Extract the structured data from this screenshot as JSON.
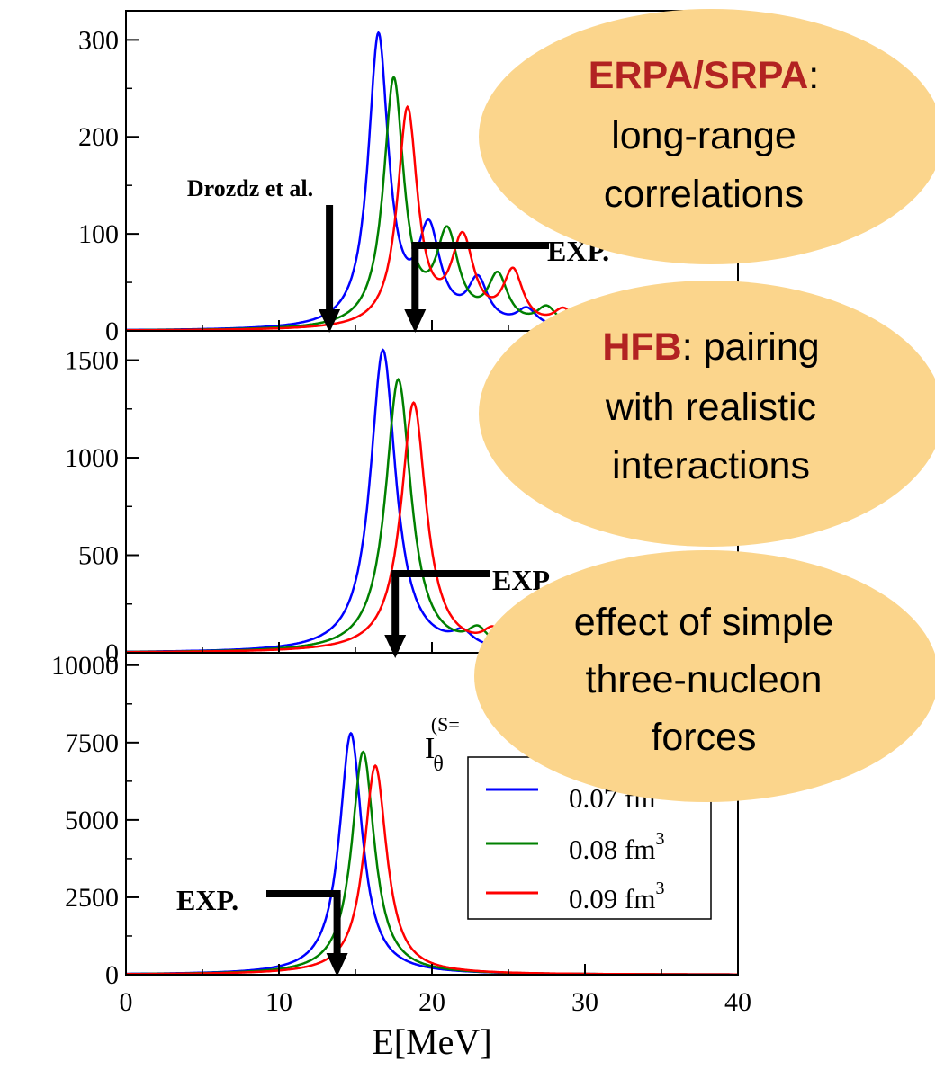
{
  "chart_data": {
    "type": "line",
    "xlabel": "E[MeV]",
    "xlim": [
      0,
      40
    ],
    "x_ticks": [
      "0",
      "10",
      "20",
      "30",
      "40"
    ],
    "panels": [
      {
        "name": "top",
        "ylim": [
          0,
          330
        ],
        "y_ticks": [
          {
            "value": 0,
            "label": "0"
          },
          {
            "value": 100,
            "label": "100"
          },
          {
            "value": 200,
            "label": "200"
          },
          {
            "value": 300,
            "label": "300"
          }
        ],
        "series": [
          {
            "color": "#0000ff",
            "peaks": [
              {
                "x": 16.5,
                "y": 300,
                "w": 0.8
              },
              {
                "x": 19.8,
                "y": 95,
                "w": 0.9
              },
              {
                "x": 23.0,
                "y": 45,
                "w": 0.8
              },
              {
                "x": 26.2,
                "y": 18,
                "w": 0.8
              }
            ]
          },
          {
            "color": "#008000",
            "peaks": [
              {
                "x": 17.5,
                "y": 255,
                "w": 0.8
              },
              {
                "x": 21.0,
                "y": 92,
                "w": 0.9
              },
              {
                "x": 24.3,
                "y": 50,
                "w": 0.8
              },
              {
                "x": 27.5,
                "y": 20,
                "w": 0.8
              }
            ]
          },
          {
            "color": "#ff0000",
            "peaks": [
              {
                "x": 18.4,
                "y": 225,
                "w": 0.8
              },
              {
                "x": 22.0,
                "y": 88,
                "w": 0.9
              },
              {
                "x": 25.3,
                "y": 55,
                "w": 0.8
              },
              {
                "x": 28.6,
                "y": 18,
                "w": 0.8
              }
            ]
          }
        ],
        "annotations": [
          {
            "text": "Drozdz et al.",
            "x": 13.3
          },
          {
            "text": "EXP.",
            "x": 18.9
          }
        ]
      },
      {
        "name": "middle",
        "ylim": [
          0,
          1650
        ],
        "y_ticks": [
          {
            "value": 0,
            "label": "0"
          },
          {
            "value": 500,
            "label": "500"
          },
          {
            "value": 1000,
            "label": "1000"
          },
          {
            "value": 1500,
            "label": "1500"
          }
        ],
        "series": [
          {
            "color": "#0000ff",
            "peaks": [
              {
                "x": 16.8,
                "y": 1550,
                "w": 1.0
              },
              {
                "x": 22.0,
                "y": 70,
                "w": 0.8
              }
            ]
          },
          {
            "color": "#008000",
            "peaks": [
              {
                "x": 17.8,
                "y": 1400,
                "w": 1.0
              },
              {
                "x": 23.0,
                "y": 90,
                "w": 0.8
              }
            ]
          },
          {
            "color": "#ff0000",
            "peaks": [
              {
                "x": 18.8,
                "y": 1280,
                "w": 1.0
              },
              {
                "x": 24.0,
                "y": 90,
                "w": 0.8
              }
            ]
          }
        ],
        "annotations": [
          {
            "text": "EXP.",
            "x": 17.6
          }
        ]
      },
      {
        "name": "bottom",
        "ylim": [
          0,
          10400
        ],
        "y_ticks": [
          {
            "value": 0,
            "label": "0"
          },
          {
            "value": 2500,
            "label": "2500"
          },
          {
            "value": 5000,
            "label": "5000"
          },
          {
            "value": 7500,
            "label": "7500"
          },
          {
            "value": 10000,
            "label": "10000"
          }
        ],
        "series": [
          {
            "color": "#0000ff",
            "peaks": [
              {
                "x": 14.7,
                "y": 7800,
                "w": 0.9
              }
            ]
          },
          {
            "color": "#008000",
            "peaks": [
              {
                "x": 15.5,
                "y": 7200,
                "w": 0.9
              }
            ]
          },
          {
            "color": "#ff0000",
            "peaks": [
              {
                "x": 16.3,
                "y": 6750,
                "w": 0.9
              }
            ]
          }
        ],
        "annotations": [
          {
            "text": "EXP.",
            "x": 13.8
          }
        ],
        "partial_label": {
          "main": "I",
          "sub": "θ",
          "sup": "(S="
        }
      }
    ],
    "legend": {
      "placement": "bottom-right",
      "entries": [
        {
          "color": "#0000ff",
          "label": "0.07 fm",
          "sup": "3"
        },
        {
          "color": "#008000",
          "label": "0.08 fm",
          "sup": "3"
        },
        {
          "color": "#ff0000",
          "label": "0.09 fm",
          "sup": "3"
        }
      ]
    }
  },
  "callouts": [
    {
      "highlight": "ERPA/SRPA",
      "rest": ":",
      "lines": [
        "long-range",
        "correlations"
      ]
    },
    {
      "highlight": "HFB",
      "rest": ": pairing",
      "lines": [
        "with realistic",
        "interactions"
      ]
    },
    {
      "highlight": "",
      "rest": "",
      "lines": [
        "effect of simple",
        "three-nucleon",
        "forces"
      ]
    }
  ],
  "colors": {
    "callout_fill": "#fbd58c",
    "highlight": "#b22222"
  }
}
